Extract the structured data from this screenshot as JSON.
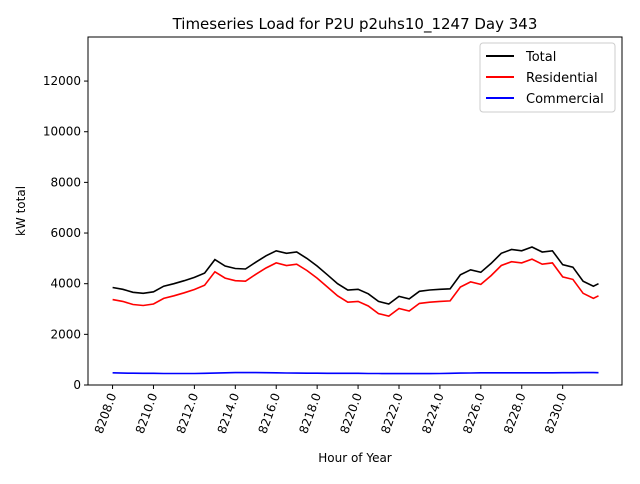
{
  "chart_data": {
    "type": "line",
    "title": "Timeseries Load for P2U p2uhs10_1247  Day 343",
    "xlabel": "Hour of Year",
    "ylabel": "kW total",
    "xlim": [
      8206.8,
      8232.9
    ],
    "ylim": [
      0,
      13740
    ],
    "xticks": [
      "8208.0",
      "8210.0",
      "8212.0",
      "8214.0",
      "8216.0",
      "8218.0",
      "8220.0",
      "8222.0",
      "8224.0",
      "8226.0",
      "8228.0",
      "8230.0"
    ],
    "xtick_values": [
      8208,
      8210,
      8212,
      8214,
      8216,
      8218,
      8220,
      8222,
      8224,
      8226,
      8228,
      8230
    ],
    "yticks": [
      "0",
      "2000",
      "4000",
      "6000",
      "8000",
      "10000",
      "12000"
    ],
    "ytick_values": [
      0,
      2000,
      4000,
      6000,
      8000,
      10000,
      12000
    ],
    "grid": false,
    "legend_position": "top-right",
    "x": [
      8208,
      8208.5,
      8209,
      8209.5,
      8210,
      8210.5,
      8211,
      8211.5,
      8212,
      8212.5,
      8213,
      8213.5,
      8214,
      8214.5,
      8215,
      8215.5,
      8216,
      8216.5,
      8217,
      8217.5,
      8218,
      8218.5,
      8219,
      8219.5,
      8220,
      8220.5,
      8221,
      8221.5,
      8222,
      8222.5,
      8223,
      8223.5,
      8224,
      8224.5,
      8225,
      8225.5,
      8226,
      8226.5,
      8227,
      8227.5,
      8228,
      8228.5,
      8229,
      8229.5,
      8230,
      8230.5,
      8231,
      8231.5,
      8231.75
    ],
    "series": [
      {
        "name": "Total",
        "color": "#000000",
        "values": [
          3850,
          3780,
          3660,
          3620,
          3680,
          3900,
          4000,
          4120,
          4250,
          4420,
          4950,
          4700,
          4600,
          4580,
          4850,
          5100,
          5300,
          5200,
          5250,
          5000,
          4700,
          4350,
          4000,
          3750,
          3780,
          3600,
          3300,
          3200,
          3500,
          3400,
          3700,
          3750,
          3780,
          3800,
          4350,
          4550,
          4450,
          4800,
          5200,
          5350,
          5300,
          5450,
          5250,
          5300,
          4750,
          4650,
          4100,
          3900,
          4000
        ]
      },
      {
        "name": "Residential",
        "color": "#ff0000",
        "values": [
          3370,
          3300,
          3180,
          3140,
          3200,
          3420,
          3520,
          3640,
          3770,
          3940,
          4470,
          4220,
          4120,
          4100,
          4370,
          4620,
          4820,
          4720,
          4770,
          4520,
          4220,
          3870,
          3520,
          3270,
          3300,
          3120,
          2820,
          2720,
          3020,
          2920,
          3220,
          3270,
          3300,
          3320,
          3870,
          4070,
          3970,
          4320,
          4720,
          4870,
          4820,
          4970,
          4770,
          4820,
          4270,
          4170,
          3620,
          3420,
          3520
        ]
      },
      {
        "name": "Commercial",
        "color": "#0000ff",
        "values": [
          480,
          470,
          465,
          460,
          460,
          455,
          455,
          455,
          455,
          460,
          470,
          480,
          490,
          490,
          490,
          485,
          480,
          475,
          470,
          465,
          465,
          460,
          460,
          460,
          460,
          455,
          455,
          450,
          450,
          450,
          450,
          450,
          455,
          460,
          470,
          475,
          480,
          480,
          480,
          480,
          480,
          480,
          480,
          480,
          485,
          485,
          490,
          490,
          485
        ]
      }
    ]
  }
}
